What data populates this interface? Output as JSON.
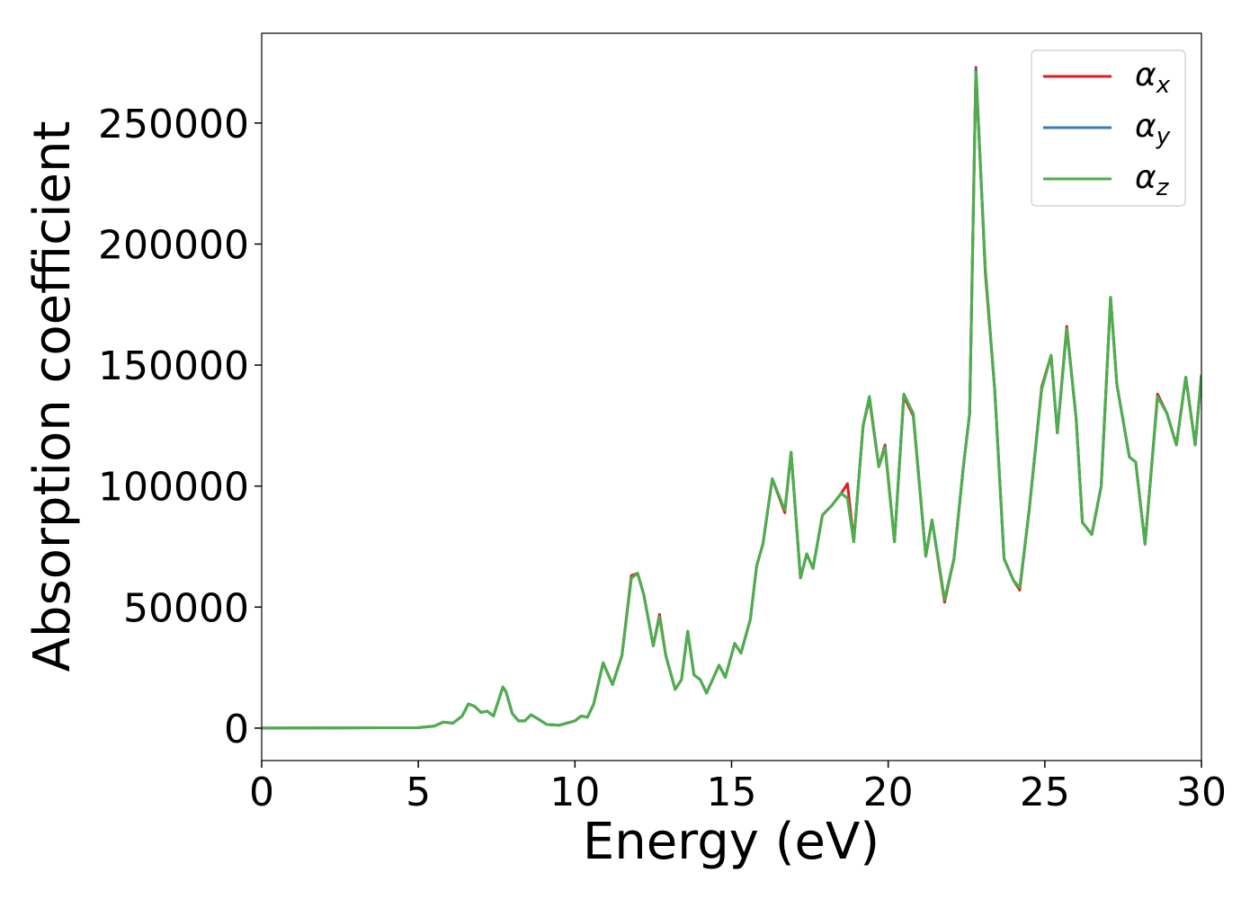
{
  "chart_data": {
    "type": "line",
    "xlabel": "Energy (eV)",
    "ylabel": "Absorption coefficient",
    "x": [
      0,
      5,
      5.5,
      5.8,
      6.1,
      6.4,
      6.6,
      6.8,
      7.0,
      7.2,
      7.4,
      7.6,
      7.7,
      7.8,
      8.0,
      8.2,
      8.4,
      8.6,
      8.8,
      9.1,
      9.5,
      10.0,
      10.2,
      10.4,
      10.6,
      10.9,
      11.2,
      11.5,
      11.8,
      12.0,
      12.2,
      12.5,
      12.7,
      12.9,
      13.2,
      13.4,
      13.6,
      13.8,
      14.0,
      14.2,
      14.6,
      14.8,
      15.1,
      15.3,
      15.6,
      15.8,
      16.0,
      16.3,
      16.7,
      16.9,
      17.2,
      17.4,
      17.6,
      17.9,
      18.2,
      18.5,
      18.7,
      18.9,
      19.2,
      19.4,
      19.7,
      19.9,
      20.2,
      20.5,
      20.8,
      21.2,
      21.4,
      21.8,
      22.1,
      22.4,
      22.6,
      22.8,
      23.1,
      23.4,
      23.7,
      24.0,
      24.2,
      24.5,
      24.9,
      25.2,
      25.4,
      25.7,
      26.0,
      26.2,
      26.5,
      26.8,
      27.1,
      27.3,
      27.7,
      27.9,
      28.2,
      28.6,
      28.9,
      29.2,
      29.5,
      29.8,
      30.0
    ],
    "series": [
      {
        "name": "αx",
        "color": "#e41a1c",
        "values": [
          0,
          200,
          800,
          2500,
          2000,
          5000,
          10000,
          9000,
          6500,
          7000,
          5000,
          13000,
          17000,
          15000,
          6000,
          3000,
          3000,
          5500,
          4000,
          1500,
          1200,
          3000,
          5000,
          4500,
          10000,
          27000,
          18000,
          30000,
          63000,
          64000,
          55000,
          34000,
          47000,
          30000,
          16000,
          20000,
          40000,
          22000,
          20000,
          14500,
          26000,
          21000,
          35000,
          31000,
          45000,
          67000,
          76000,
          103000,
          89000,
          114000,
          62000,
          72000,
          66000,
          88000,
          92000,
          97000,
          101000,
          77000,
          125000,
          136000,
          108000,
          117000,
          77000,
          137000,
          129000,
          71000,
          86000,
          52000,
          70000,
          108000,
          130000,
          273000,
          188000,
          140000,
          70000,
          61000,
          57000,
          90000,
          141000,
          154000,
          122000,
          166000,
          128000,
          85000,
          80000,
          100000,
          178000,
          142000,
          112000,
          110000,
          76000,
          138000,
          130000,
          117000,
          145000,
          117000,
          146000
        ]
      },
      {
        "name": "αy",
        "color": "#377eb8",
        "values": [
          0,
          200,
          800,
          2500,
          2000,
          5000,
          10000,
          9000,
          6500,
          7000,
          5000,
          13000,
          17000,
          15000,
          6000,
          3000,
          3000,
          5500,
          4000,
          1500,
          1200,
          3000,
          5000,
          4500,
          10000,
          27000,
          18000,
          30000,
          62000,
          64000,
          55000,
          34000,
          46000,
          30000,
          16000,
          20000,
          40000,
          22000,
          20000,
          14500,
          26000,
          21000,
          35000,
          31000,
          45000,
          67000,
          76000,
          103000,
          90000,
          114000,
          62000,
          72000,
          66000,
          88000,
          92000,
          97000,
          95000,
          77000,
          125000,
          137000,
          108000,
          116000,
          77000,
          138000,
          130000,
          71000,
          86000,
          53000,
          70000,
          108000,
          130000,
          272000,
          190000,
          140000,
          70000,
          61000,
          58000,
          90000,
          140000,
          154000,
          122000,
          165000,
          128000,
          85000,
          80000,
          100000,
          178000,
          142000,
          112000,
          110000,
          76000,
          137000,
          130000,
          117000,
          145000,
          117000,
          146000
        ]
      },
      {
        "name": "αz",
        "color": "#4daf4a",
        "values": [
          0,
          200,
          800,
          2500,
          2000,
          5000,
          10000,
          9000,
          6500,
          7000,
          5000,
          13000,
          17000,
          15000,
          6000,
          3000,
          3000,
          5500,
          4000,
          1500,
          1200,
          3000,
          5000,
          4500,
          10000,
          27000,
          18000,
          30000,
          62000,
          64000,
          55000,
          34000,
          46000,
          30000,
          16000,
          20000,
          40000,
          22000,
          20000,
          14500,
          26000,
          21000,
          35000,
          31000,
          45000,
          67000,
          76000,
          103000,
          90000,
          114000,
          62000,
          72000,
          66000,
          88000,
          92000,
          97000,
          95000,
          77000,
          125000,
          137000,
          108000,
          116000,
          77000,
          138000,
          130000,
          71000,
          86000,
          53000,
          70000,
          108000,
          130000,
          271000,
          190000,
          140000,
          70000,
          61000,
          58000,
          90000,
          140000,
          154000,
          122000,
          165000,
          128000,
          85000,
          80000,
          100000,
          178000,
          142000,
          112000,
          110000,
          76000,
          137000,
          130000,
          117000,
          145000,
          117000,
          146000
        ]
      }
    ],
    "xlim": [
      0,
      30
    ],
    "xticks": [
      0,
      5,
      10,
      15,
      20,
      25,
      30
    ],
    "ylim": [
      -13400,
      287100
    ],
    "yticks": [
      0,
      50000,
      100000,
      150000,
      200000,
      250000
    ],
    "legend": "upper right"
  }
}
